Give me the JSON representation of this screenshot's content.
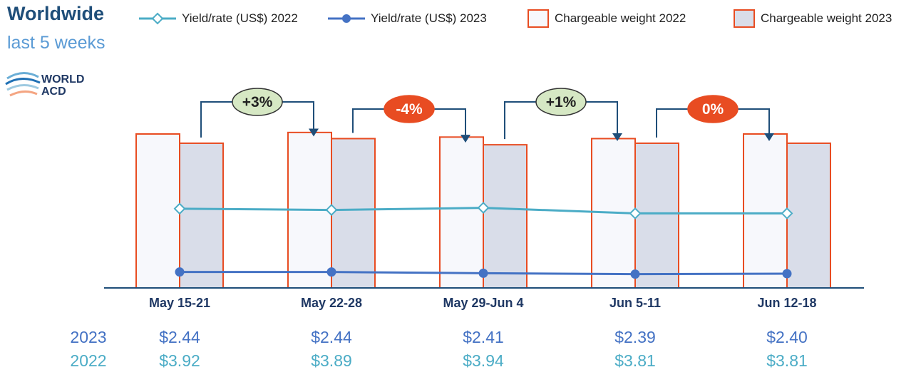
{
  "header": {
    "title": "Worldwide",
    "subtitle": "last 5 weeks",
    "logo_text_line1": "WORLD",
    "logo_text_line2": "ACD"
  },
  "legend": [
    {
      "label": "Yield/rate (US$) 2022",
      "marker": "diamond-line",
      "color": "#4bacc6"
    },
    {
      "label": "Yield/rate (US$) 2023",
      "marker": "circle-line",
      "color": "#4472c4"
    },
    {
      "label": "Chargeable weight 2022",
      "marker": "box",
      "color": "#e84c22"
    },
    {
      "label": "Chargeable weight 2023",
      "marker": "box-filled",
      "color": "#e84c22"
    }
  ],
  "chart_data": {
    "type": "bar",
    "categories": [
      "May 15-21",
      "May 22-28",
      "May 29-Jun 4",
      "Jun 5-11",
      "Jun 12-18"
    ],
    "series": [
      {
        "name": "Chargeable weight 2022",
        "kind": "bar",
        "values": [
          100,
          101,
          98,
          97,
          100
        ]
      },
      {
        "name": "Chargeable weight 2023",
        "kind": "bar",
        "values": [
          94,
          97,
          93,
          94,
          94
        ]
      },
      {
        "name": "Yield/rate (US$) 2022",
        "kind": "line",
        "values": [
          3.92,
          3.89,
          3.94,
          3.81,
          3.81
        ]
      },
      {
        "name": "Yield/rate (US$) 2023",
        "kind": "line",
        "values": [
          2.44,
          2.44,
          2.41,
          2.39,
          2.4
        ]
      }
    ],
    "week_changes": [
      "+3%",
      "-4%",
      "+1%",
      "0%"
    ],
    "change_colors": [
      "#d6e8c4",
      "#e84c22",
      "#d6e8c4",
      "#e84c22"
    ],
    "row_labels": {
      "y2023": "2023",
      "y2022": "2022"
    },
    "values_2023": [
      "$2.44",
      "$2.44",
      "$2.41",
      "$2.39",
      "$2.40"
    ],
    "values_2022": [
      "$3.92",
      "$3.89",
      "$3.94",
      "$3.81",
      "$3.81"
    ],
    "colors": {
      "bar_border": "#e84c22",
      "bar_2022_fill": "#f7f8fc",
      "bar_2023_fill": "#d9dde9",
      "line_2022": "#4bacc6",
      "line_2023": "#4472c4",
      "axis": "#1f4e79",
      "arrow": "#1f4e79"
    }
  }
}
